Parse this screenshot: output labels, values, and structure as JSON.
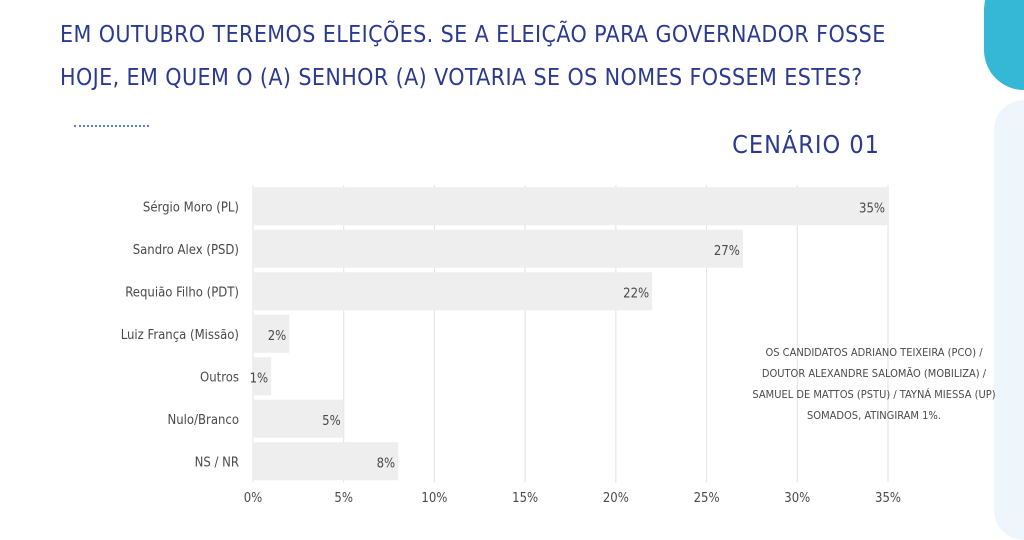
{
  "header": {
    "question": "EM OUTUBRO TEREMOS ELEIÇÕES. SE A ELEIÇÃO PARA GOVERNADOR FOSSE HOJE, EM QUEM O (A) SENHOR (A) VOTARIA SE OS NOMES FOSSEM ESTES?",
    "scenario": "CENÁRIO 01"
  },
  "note": "OS CANDIDATOS ADRIANO TEIXEIRA (PCO) / DOUTOR ALEXANDRE SALOMÃO (MOBILIZA) / SAMUEL DE MATTOS (PSTU) / TAYNÁ MIESSA (UP) SOMADOS, ATINGIRAM 1%.",
  "colors": {
    "bar": "#eeeeee",
    "grid": "#e2e2e2",
    "text": "#4a4a4a",
    "title": "#2b3a8f",
    "accent": "#35b7d6"
  },
  "chart_data": {
    "type": "bar",
    "orientation": "horizontal",
    "categories": [
      "Sérgio Moro (PL)",
      "Sandro Alex (PSD)",
      "Requião Filho (PDT)",
      "Luiz França (Missão)",
      "Outros",
      "Nulo/Branco",
      "NS / NR"
    ],
    "values": [
      35,
      27,
      22,
      2,
      1,
      5,
      8
    ],
    "value_labels": [
      "35%",
      "27%",
      "22%",
      "2%",
      "1%",
      "5%",
      "8%"
    ],
    "xlim": [
      0,
      35
    ],
    "xticks": [
      0,
      5,
      10,
      15,
      20,
      25,
      30,
      35
    ],
    "xtick_labels": [
      "0%",
      "5%",
      "10%",
      "15%",
      "20%",
      "25%",
      "30%",
      "35%"
    ],
    "grid": true,
    "legend": "none"
  }
}
